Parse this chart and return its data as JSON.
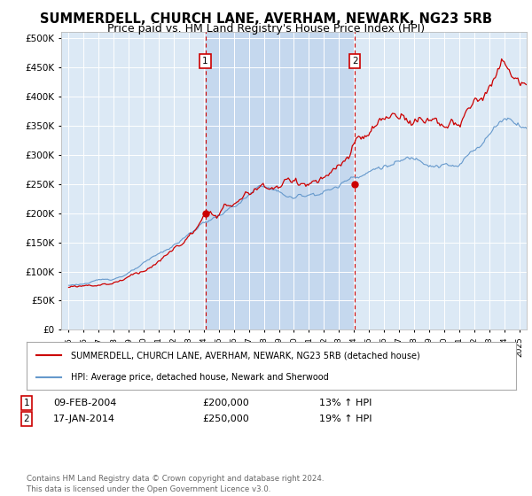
{
  "title": "SUMMERDELL, CHURCH LANE, AVERHAM, NEWARK, NG23 5RB",
  "subtitle": "Price paid vs. HM Land Registry's House Price Index (HPI)",
  "title_fontsize": 10.5,
  "subtitle_fontsize": 9,
  "background_color": "#ffffff",
  "plot_background": "#dce9f5",
  "plot_background_shaded": "#c5d8ee",
  "grid_color": "#ffffff",
  "red_color": "#cc0000",
  "blue_color": "#6699cc",
  "legend_line1": "SUMMERDELL, CHURCH LANE, AVERHAM, NEWARK, NG23 5RB (detached house)",
  "legend_line2": "HPI: Average price, detached house, Newark and Sherwood",
  "footer": "Contains HM Land Registry data © Crown copyright and database right 2024.\nThis data is licensed under the Open Government Licence v3.0.",
  "yticks": [
    0,
    50000,
    100000,
    150000,
    200000,
    250000,
    300000,
    350000,
    400000,
    450000,
    500000
  ],
  "ylim": [
    0,
    510000
  ],
  "xlim_start": 1994.5,
  "xlim_end": 2025.5,
  "sale1_year": 2004.1,
  "sale2_year": 2014.05,
  "sale1_price": 200000,
  "sale2_price": 250000,
  "row1_date": "09-FEB-2004",
  "row1_price": "£200,000",
  "row1_pct": "13% ↑ HPI",
  "row2_date": "17-JAN-2014",
  "row2_price": "£250,000",
  "row2_pct": "19% ↑ HPI"
}
